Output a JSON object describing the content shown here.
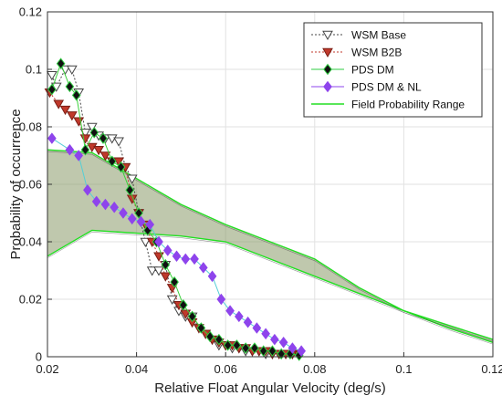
{
  "chart_data": {
    "type": "line",
    "xlabel": "Relative Float Angular Velocity (deg/s)",
    "ylabel": "Probability of occurrence",
    "xlim": [
      0.02,
      0.12
    ],
    "ylim": [
      0,
      0.12
    ],
    "xticks": [
      0.02,
      0.04,
      0.06,
      0.08,
      0.1,
      0.12
    ],
    "yticks": [
      0,
      0.02,
      0.04,
      0.06,
      0.08,
      0.1,
      0.12
    ],
    "xtick_labels": [
      "0.02",
      "0.04",
      "0.06",
      "0.08",
      "0.1",
      "0.12"
    ],
    "ytick_labels": [
      "0",
      "0.02",
      "0.04",
      "0.06",
      "0.08",
      "0.1",
      "0.12"
    ],
    "grid": true,
    "legend_position": "top-right",
    "series": [
      {
        "name": "WSM Base",
        "marker": "triangle-down-open",
        "color": "#444444",
        "x": [
          0.021,
          0.022,
          0.024,
          0.0255,
          0.027,
          0.0285,
          0.03,
          0.0315,
          0.033,
          0.0345,
          0.036,
          0.0375,
          0.039,
          0.0405,
          0.042,
          0.0435,
          0.045,
          0.0465,
          0.048,
          0.0495,
          0.051,
          0.0525,
          0.054,
          0.0555,
          0.057,
          0.0585,
          0.06,
          0.0615,
          0.063,
          0.0645,
          0.066,
          0.0675,
          0.069,
          0.0705,
          0.072,
          0.0735,
          0.075,
          0.0765
        ],
        "y": [
          0.098,
          0.094,
          0.1,
          0.1,
          0.092,
          0.078,
          0.08,
          0.077,
          0.076,
          0.076,
          0.075,
          0.066,
          0.062,
          0.05,
          0.04,
          0.03,
          0.03,
          0.032,
          0.02,
          0.016,
          0.014,
          0.014,
          0.01,
          0.008,
          0.006,
          0.004,
          0.004,
          0.003,
          0.003,
          0.002,
          0.002,
          0.002,
          0.001,
          0.001,
          0.001,
          0.001,
          0.001,
          0.0005
        ]
      },
      {
        "name": "WSM B2B",
        "marker": "triangle-down",
        "color": "#c0392b",
        "x": [
          0.0205,
          0.0225,
          0.024,
          0.0255,
          0.027,
          0.0285,
          0.03,
          0.0315,
          0.033,
          0.0345,
          0.036,
          0.0375,
          0.039,
          0.0405,
          0.042,
          0.0435,
          0.045,
          0.0465,
          0.048,
          0.0495,
          0.051,
          0.0525,
          0.054,
          0.0555,
          0.057,
          0.0585,
          0.06,
          0.0615,
          0.063,
          0.0645,
          0.066,
          0.0675,
          0.069,
          0.0705,
          0.072,
          0.0735,
          0.075,
          0.0765
        ],
        "y": [
          0.092,
          0.088,
          0.086,
          0.084,
          0.082,
          0.076,
          0.073,
          0.072,
          0.07,
          0.068,
          0.068,
          0.066,
          0.055,
          0.05,
          0.046,
          0.04,
          0.035,
          0.028,
          0.024,
          0.018,
          0.015,
          0.012,
          0.01,
          0.008,
          0.006,
          0.005,
          0.004,
          0.004,
          0.003,
          0.003,
          0.002,
          0.002,
          0.002,
          0.001,
          0.001,
          0.001,
          0.001,
          0.0005
        ]
      },
      {
        "name": "PDS DM",
        "marker": "diamond",
        "color": "#2ecc40",
        "x": [
          0.021,
          0.023,
          0.025,
          0.0265,
          0.0285,
          0.0305,
          0.0325,
          0.0345,
          0.0365,
          0.0385,
          0.0405,
          0.0425,
          0.0445,
          0.0465,
          0.0485,
          0.0505,
          0.0525,
          0.0545,
          0.0565,
          0.0585,
          0.0605,
          0.0625,
          0.0645,
          0.0665,
          0.0685,
          0.0705,
          0.0725,
          0.0745,
          0.0765
        ],
        "y": [
          0.093,
          0.102,
          0.094,
          0.091,
          0.072,
          0.078,
          0.076,
          0.068,
          0.066,
          0.058,
          0.05,
          0.044,
          0.04,
          0.032,
          0.026,
          0.018,
          0.014,
          0.01,
          0.007,
          0.006,
          0.004,
          0.004,
          0.003,
          0.003,
          0.002,
          0.002,
          0.001,
          0.001,
          0.0005
        ]
      },
      {
        "name": "PDS DM & NL",
        "marker": "diamond",
        "color": "#8e44ec",
        "x": [
          0.021,
          0.025,
          0.027,
          0.029,
          0.031,
          0.033,
          0.035,
          0.037,
          0.039,
          0.041,
          0.043,
          0.045,
          0.047,
          0.049,
          0.051,
          0.053,
          0.055,
          0.057,
          0.059,
          0.061,
          0.063,
          0.065,
          0.067,
          0.069,
          0.071,
          0.073,
          0.075,
          0.077
        ],
        "y": [
          0.076,
          0.072,
          0.07,
          0.058,
          0.054,
          0.053,
          0.052,
          0.05,
          0.048,
          0.047,
          0.046,
          0.04,
          0.037,
          0.035,
          0.034,
          0.034,
          0.031,
          0.028,
          0.02,
          0.016,
          0.014,
          0.012,
          0.01,
          0.008,
          0.006,
          0.005,
          0.003,
          0.002
        ]
      },
      {
        "name": "Field Probability Range",
        "type": "band",
        "color": "#22dd22",
        "fill": "#8a9a6a",
        "x_upper": [
          0.02,
          0.03,
          0.04,
          0.05,
          0.06,
          0.07,
          0.08,
          0.09,
          0.1,
          0.11,
          0.12
        ],
        "upper": [
          0.072,
          0.071,
          0.062,
          0.053,
          0.046,
          0.04,
          0.034,
          0.024,
          0.016,
          0.011,
          0.006
        ],
        "x_lower": [
          0.02,
          0.03,
          0.04,
          0.05,
          0.06,
          0.07,
          0.08,
          0.09,
          0.1,
          0.11,
          0.12
        ],
        "lower": [
          0.035,
          0.044,
          0.043,
          0.042,
          0.04,
          0.034,
          0.028,
          0.022,
          0.016,
          0.01,
          0.005
        ]
      }
    ]
  }
}
